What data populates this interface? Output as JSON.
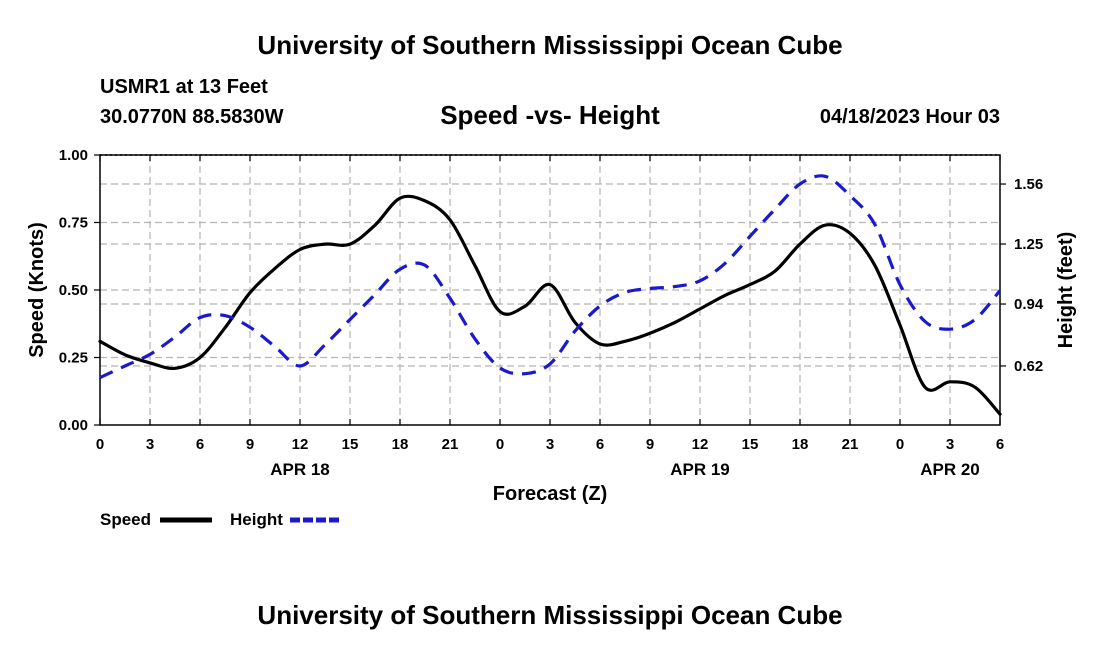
{
  "header": {
    "title": "University of Southern Mississippi Ocean Cube",
    "station": "USMR1 at 13 Feet",
    "coords": "30.0770N  88.5830W",
    "subtitle": "Speed -vs- Height",
    "datetime": "04/18/2023 Hour 03"
  },
  "footer": {
    "title": "University of Southern Mississippi Ocean Cube"
  },
  "chart_data": {
    "type": "line",
    "title": "Speed -vs- Height",
    "xlabel": "Forecast (Z)",
    "ylabel_left": "Speed (Knots)",
    "ylabel_right": "Height (feet)",
    "x_range": [
      0,
      54
    ],
    "y_left_range": [
      0,
      1
    ],
    "y_right_range": [
      0.315,
      1.71
    ],
    "grid": true,
    "x_ticks": [
      0,
      3,
      6,
      9,
      12,
      15,
      18,
      21,
      24,
      27,
      30,
      33,
      36,
      39,
      42,
      45,
      48,
      51,
      54
    ],
    "x_tick_labels": [
      "0",
      "3",
      "6",
      "9",
      "12",
      "15",
      "18",
      "21",
      "0",
      "3",
      "6",
      "9",
      "12",
      "15",
      "18",
      "21",
      "0",
      "3",
      "6"
    ],
    "date_labels": [
      {
        "x": 12,
        "label": "APR 18"
      },
      {
        "x": 36,
        "label": "APR 19"
      },
      {
        "x": 51,
        "label": "APR 20"
      }
    ],
    "y_left_ticks": [
      {
        "value": 0,
        "label": "0.00"
      },
      {
        "value": 0.25,
        "label": "0.25"
      },
      {
        "value": 0.5,
        "label": "0.50"
      },
      {
        "value": 0.75,
        "label": "0.75"
      },
      {
        "value": 1.0,
        "label": "1.00"
      }
    ],
    "y_right_ticks": [
      {
        "value": 0.62,
        "label": "0.62"
      },
      {
        "value": 0.94,
        "label": "0.94"
      },
      {
        "value": 1.25,
        "label": "1.25"
      },
      {
        "value": 1.56,
        "label": "1.56"
      }
    ],
    "series": [
      {
        "name": "Speed",
        "axis": "left",
        "color": "#000000",
        "dash": "solid",
        "x": [
          0,
          1.5,
          3,
          4.5,
          6,
          7.5,
          9,
          10.5,
          12,
          13.5,
          15,
          16.5,
          18,
          19.5,
          21,
          22.5,
          24,
          25.5,
          27,
          28.5,
          30,
          31.5,
          33,
          34.5,
          36,
          37.5,
          39,
          40.5,
          42,
          43.5,
          45,
          46.5,
          48,
          49.5,
          51,
          52.5,
          54
        ],
        "values": [
          0.31,
          0.26,
          0.23,
          0.21,
          0.25,
          0.36,
          0.49,
          0.58,
          0.65,
          0.67,
          0.67,
          0.74,
          0.84,
          0.83,
          0.76,
          0.59,
          0.42,
          0.44,
          0.52,
          0.38,
          0.3,
          0.31,
          0.34,
          0.38,
          0.43,
          0.48,
          0.52,
          0.57,
          0.67,
          0.74,
          0.71,
          0.59,
          0.37,
          0.14,
          0.16,
          0.14,
          0.04
        ]
      },
      {
        "name": "Height",
        "axis": "right",
        "color": "#1a1acc",
        "dash": "dashed",
        "x": [
          0,
          1.5,
          3,
          4.5,
          6,
          7.5,
          9,
          10.5,
          12,
          13.5,
          15,
          16.5,
          18,
          19.5,
          21,
          22.5,
          24,
          25.5,
          27,
          28.5,
          30,
          31.5,
          33,
          34.5,
          36,
          37.5,
          39,
          40.5,
          42,
          43.5,
          45,
          46.5,
          48,
          49.5,
          51,
          52.5,
          54
        ],
        "values": [
          0.56,
          0.62,
          0.68,
          0.77,
          0.87,
          0.88,
          0.82,
          0.72,
          0.62,
          0.73,
          0.86,
          0.99,
          1.12,
          1.14,
          0.97,
          0.76,
          0.61,
          0.58,
          0.63,
          0.8,
          0.93,
          1.0,
          1.02,
          1.03,
          1.06,
          1.15,
          1.29,
          1.43,
          1.56,
          1.6,
          1.5,
          1.35,
          1.04,
          0.85,
          0.81,
          0.86,
          1.01
        ]
      }
    ],
    "legend": [
      {
        "label": "Speed",
        "color": "#000000",
        "dash": "solid"
      },
      {
        "label": "Height",
        "color": "#1a1acc",
        "dash": "dashed"
      }
    ]
  }
}
